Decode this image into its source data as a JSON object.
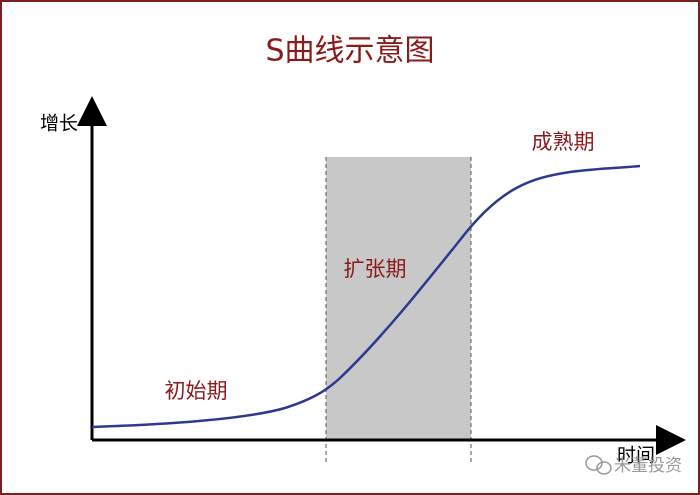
{
  "title": "S曲线示意图",
  "axes": {
    "y_label": "增长",
    "x_label": "时间"
  },
  "phases": [
    "初始期",
    "扩张期",
    "成熟期"
  ],
  "watermark": "米董投资"
}
